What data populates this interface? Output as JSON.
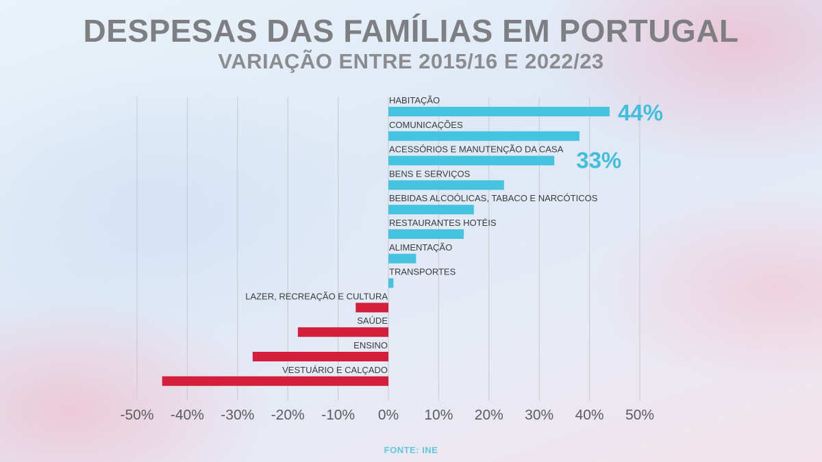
{
  "header": {
    "title": "DESPESAS DAS FAMÍLIAS EM PORTUGAL",
    "subtitle": "VARIAÇÃO ENTRE 2015/16 E 2022/23"
  },
  "footer": {
    "source": "FONTE: INE"
  },
  "colors": {
    "positive": "#45c3df",
    "negative": "#d31f3c",
    "gridline": "#c6c9cc",
    "callout": "#41bedc"
  },
  "chart_data": {
    "type": "bar",
    "orientation": "horizontal",
    "title": "DESPESAS DAS FAMÍLIAS EM PORTUGAL",
    "subtitle": "VARIAÇÃO ENTRE 2015/16 E 2022/23",
    "xlim": [
      -50,
      50
    ],
    "x_ticks": [
      -50,
      -40,
      -30,
      -20,
      -10,
      0,
      10,
      20,
      30,
      40,
      50
    ],
    "x_tick_labels": [
      "-50%",
      "-40%",
      "-30%",
      "-20%",
      "-10%",
      "0%",
      "10%",
      "20%",
      "30%",
      "40%",
      "50%"
    ],
    "grid": "vertical",
    "unit": "%",
    "categories": [
      "HABITAÇÃO",
      "COMUNICAÇÕES",
      "ACESSÓRIOS E MANUTENÇÃO DA CASA",
      "BENS E SERVIÇOS",
      "BEBIDAS ALCOÓLICAS, TABACO E NARCÓTICOS",
      "RESTAURANTES HOTÉIS",
      "ALIMENTAÇÃO",
      "TRANSPORTES",
      "LAZER, RECREAÇÃO E CULTURA",
      "SAÚDE",
      "ENSINO",
      "VESTUÁRIO E CALÇADO"
    ],
    "values": [
      44,
      38,
      33,
      23,
      17,
      15,
      5.5,
      1,
      -6.5,
      -18,
      -27,
      -45
    ],
    "annotations": [
      {
        "category": "HABITAÇÃO",
        "text": "44%"
      },
      {
        "category": "ACESSÓRIOS E MANUTENÇÃO DA CASA",
        "text": "33%"
      }
    ],
    "source": "FONTE: INE"
  }
}
